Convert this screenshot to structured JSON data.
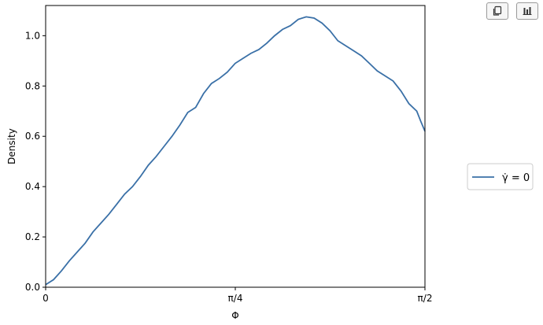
{
  "toolbar": {
    "copy_icon": "copy-icon",
    "chart_icon": "bar-chart-icon"
  },
  "chart_data": {
    "type": "line",
    "title": "",
    "xlabel": "Φ",
    "ylabel": "Density",
    "xlim": [
      0,
      1.5708
    ],
    "ylim": [
      0,
      1.12
    ],
    "xticks": [
      {
        "value": 0,
        "label": "0"
      },
      {
        "value": 0.7854,
        "label": "π/4"
      },
      {
        "value": 1.5708,
        "label": "π/2"
      }
    ],
    "yticks": [
      {
        "value": 0.0,
        "label": "0.0"
      },
      {
        "value": 0.2,
        "label": "0.2"
      },
      {
        "value": 0.4,
        "label": "0.4"
      },
      {
        "value": 0.6,
        "label": "0.6"
      },
      {
        "value": 0.8,
        "label": "0.8"
      },
      {
        "value": 1.0,
        "label": "1.0"
      }
    ],
    "legend_position": "right",
    "series": [
      {
        "name": "γ̇ = 0",
        "color": "#3a70a7",
        "x": [
          0.0,
          0.0327,
          0.0654,
          0.0981,
          0.1308,
          0.1635,
          0.1962,
          0.2289,
          0.2616,
          0.2943,
          0.327,
          0.3597,
          0.3924,
          0.4251,
          0.4578,
          0.4905,
          0.5232,
          0.5559,
          0.5886,
          0.6213,
          0.654,
          0.6867,
          0.7194,
          0.7521,
          0.7848,
          0.8175,
          0.8502,
          0.8829,
          0.9156,
          0.9483,
          0.981,
          1.0137,
          1.0464,
          1.0791,
          1.1118,
          1.1445,
          1.1772,
          1.2099,
          1.2426,
          1.2753,
          1.308,
          1.3407,
          1.3734,
          1.4061,
          1.4388,
          1.4715,
          1.5042,
          1.5369,
          1.5533,
          1.5708
        ],
        "y": [
          0.01,
          0.03,
          0.065,
          0.105,
          0.14,
          0.175,
          0.22,
          0.255,
          0.29,
          0.33,
          0.37,
          0.4,
          0.44,
          0.485,
          0.52,
          0.56,
          0.6,
          0.645,
          0.695,
          0.715,
          0.77,
          0.81,
          0.83,
          0.855,
          0.89,
          0.91,
          0.93,
          0.945,
          0.97,
          1.0,
          1.025,
          1.04,
          1.065,
          1.075,
          1.07,
          1.05,
          1.02,
          0.98,
          0.96,
          0.94,
          0.92,
          0.89,
          0.86,
          0.84,
          0.82,
          0.78,
          0.73,
          0.7,
          0.66,
          0.62
        ]
      }
    ]
  }
}
